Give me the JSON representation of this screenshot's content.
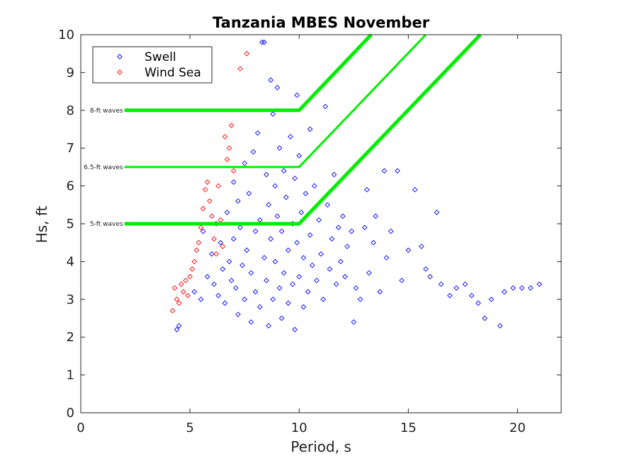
{
  "chart_data": {
    "type": "scatter",
    "title": "Tanzania MBES November",
    "xlabel": "Period, s",
    "ylabel": "Hs, ft",
    "xlim": [
      0,
      22
    ],
    "ylim": [
      0,
      10
    ],
    "xticks": [
      0,
      5,
      10,
      15,
      20
    ],
    "yticks": [
      0,
      1,
      2,
      3,
      4,
      5,
      6,
      7,
      8,
      9,
      10
    ],
    "grid": false,
    "legend_position": "top-left",
    "series": [
      {
        "name": "Swell",
        "color": "#0000ff",
        "marker": "diamond",
        "points": [
          [
            4.4,
            2.2
          ],
          [
            4.5,
            2.3
          ],
          [
            5.2,
            3.2
          ],
          [
            5.5,
            3.0
          ],
          [
            5.6,
            4.8
          ],
          [
            5.8,
            3.6
          ],
          [
            6.0,
            4.2
          ],
          [
            6.1,
            3.4
          ],
          [
            6.2,
            5.0
          ],
          [
            6.3,
            3.1
          ],
          [
            6.4,
            4.5
          ],
          [
            6.5,
            3.8
          ],
          [
            6.6,
            2.9
          ],
          [
            6.7,
            5.3
          ],
          [
            6.8,
            4.0
          ],
          [
            6.9,
            3.5
          ],
          [
            7.0,
            6.1
          ],
          [
            7.0,
            4.6
          ],
          [
            7.1,
            3.3
          ],
          [
            7.2,
            5.6
          ],
          [
            7.2,
            2.6
          ],
          [
            7.3,
            4.9
          ],
          [
            7.4,
            3.9
          ],
          [
            7.5,
            6.6
          ],
          [
            7.5,
            3.0
          ],
          [
            7.6,
            4.3
          ],
          [
            7.7,
            5.8
          ],
          [
            7.8,
            2.4
          ],
          [
            7.8,
            3.7
          ],
          [
            7.9,
            6.9
          ],
          [
            8.0,
            4.8
          ],
          [
            8.0,
            3.2
          ],
          [
            8.1,
            7.4
          ],
          [
            8.2,
            5.1
          ],
          [
            8.2,
            2.8
          ],
          [
            8.3,
            9.8
          ],
          [
            8.4,
            9.8
          ],
          [
            8.4,
            4.1
          ],
          [
            8.5,
            6.3
          ],
          [
            8.5,
            3.5
          ],
          [
            8.6,
            5.5
          ],
          [
            8.6,
            2.3
          ],
          [
            8.7,
            8.8
          ],
          [
            8.7,
            4.6
          ],
          [
            8.8,
            7.9
          ],
          [
            8.8,
            3.0
          ],
          [
            8.9,
            6.0
          ],
          [
            8.9,
            4.0
          ],
          [
            9.0,
            8.6
          ],
          [
            9.0,
            5.2
          ],
          [
            9.1,
            3.3
          ],
          [
            9.1,
            7.0
          ],
          [
            9.2,
            2.5
          ],
          [
            9.2,
            4.8
          ],
          [
            9.3,
            6.4
          ],
          [
            9.3,
            3.7
          ],
          [
            9.4,
            5.7
          ],
          [
            9.5,
            2.9
          ],
          [
            9.5,
            4.3
          ],
          [
            9.6,
            7.3
          ],
          [
            9.7,
            3.4
          ],
          [
            9.7,
            5.0
          ],
          [
            9.8,
            6.2
          ],
          [
            9.8,
            2.2
          ],
          [
            9.9,
            4.5
          ],
          [
            9.9,
            8.4
          ],
          [
            10.0,
            3.6
          ],
          [
            10.0,
            6.8
          ],
          [
            10.1,
            5.3
          ],
          [
            10.2,
            2.8
          ],
          [
            10.2,
            4.1
          ],
          [
            10.3,
            5.8
          ],
          [
            10.4,
            3.2
          ],
          [
            10.5,
            7.5
          ],
          [
            10.5,
            4.7
          ],
          [
            10.6,
            3.9
          ],
          [
            10.7,
            6.0
          ],
          [
            10.8,
            3.5
          ],
          [
            10.9,
            5.1
          ],
          [
            11.0,
            4.2
          ],
          [
            11.1,
            3.0
          ],
          [
            11.2,
            8.1
          ],
          [
            11.3,
            5.5
          ],
          [
            11.4,
            3.8
          ],
          [
            11.5,
            4.6
          ],
          [
            11.6,
            6.3
          ],
          [
            11.7,
            3.4
          ],
          [
            11.8,
            4.9
          ],
          [
            11.9,
            4.0
          ],
          [
            12.0,
            5.2
          ],
          [
            12.1,
            3.6
          ],
          [
            12.2,
            4.4
          ],
          [
            12.4,
            4.8
          ],
          [
            12.5,
            2.4
          ],
          [
            12.6,
            3.3
          ],
          [
            12.8,
            3.0
          ],
          [
            13.0,
            4.9
          ],
          [
            13.1,
            5.9
          ],
          [
            13.2,
            3.7
          ],
          [
            13.4,
            4.5
          ],
          [
            13.5,
            5.2
          ],
          [
            13.7,
            3.2
          ],
          [
            13.9,
            6.4
          ],
          [
            14.0,
            4.1
          ],
          [
            14.2,
            4.8
          ],
          [
            14.5,
            6.4
          ],
          [
            14.7,
            3.5
          ],
          [
            15.0,
            4.3
          ],
          [
            15.3,
            5.9
          ],
          [
            15.6,
            4.4
          ],
          [
            15.8,
            3.8
          ],
          [
            16.0,
            3.6
          ],
          [
            16.3,
            5.3
          ],
          [
            16.5,
            3.4
          ],
          [
            16.9,
            3.1
          ],
          [
            17.2,
            3.3
          ],
          [
            17.6,
            3.4
          ],
          [
            17.9,
            3.1
          ],
          [
            18.2,
            2.9
          ],
          [
            18.5,
            2.5
          ],
          [
            18.8,
            3.0
          ],
          [
            19.2,
            2.3
          ],
          [
            19.4,
            3.2
          ],
          [
            19.8,
            3.3
          ],
          [
            20.2,
            3.3
          ],
          [
            20.6,
            3.3
          ],
          [
            21.0,
            3.4
          ]
        ]
      },
      {
        "name": "Wind Sea",
        "color": "#ff0000",
        "marker": "diamond",
        "points": [
          [
            4.2,
            2.7
          ],
          [
            4.3,
            3.3
          ],
          [
            4.4,
            3.0
          ],
          [
            4.5,
            2.9
          ],
          [
            4.6,
            3.4
          ],
          [
            4.7,
            3.2
          ],
          [
            4.8,
            3.5
          ],
          [
            4.9,
            3.1
          ],
          [
            5.0,
            3.6
          ],
          [
            5.1,
            3.8
          ],
          [
            5.2,
            4.0
          ],
          [
            5.3,
            4.3
          ],
          [
            5.4,
            4.5
          ],
          [
            5.5,
            4.9
          ],
          [
            5.6,
            5.4
          ],
          [
            5.7,
            5.9
          ],
          [
            5.8,
            6.1
          ],
          [
            5.9,
            5.6
          ],
          [
            6.0,
            5.2
          ],
          [
            6.1,
            4.6
          ],
          [
            6.2,
            4.2
          ],
          [
            6.3,
            6.0
          ],
          [
            6.4,
            5.1
          ],
          [
            6.5,
            4.4
          ],
          [
            6.6,
            7.3
          ],
          [
            6.7,
            6.7
          ],
          [
            6.8,
            7.0
          ],
          [
            6.9,
            7.6
          ],
          [
            7.0,
            6.4
          ],
          [
            7.3,
            9.1
          ],
          [
            7.6,
            9.5
          ]
        ]
      }
    ],
    "reference_lines": [
      {
        "label": "8-ft waves",
        "color": "#00ee00",
        "thickness": "thick",
        "points": [
          [
            2.0,
            8.0
          ],
          [
            10.0,
            8.0
          ],
          [
            13.3,
            10.0
          ]
        ]
      },
      {
        "label": "6.5-ft waves",
        "color": "#00ee00",
        "thickness": "thin",
        "points": [
          [
            2.0,
            6.5
          ],
          [
            10.0,
            6.5
          ],
          [
            15.8,
            10.0
          ]
        ]
      },
      {
        "label": "5-ft waves",
        "color": "#00ee00",
        "thickness": "thick",
        "points": [
          [
            2.0,
            5.0
          ],
          [
            10.0,
            5.0
          ],
          [
            18.3,
            10.0
          ]
        ]
      }
    ]
  }
}
